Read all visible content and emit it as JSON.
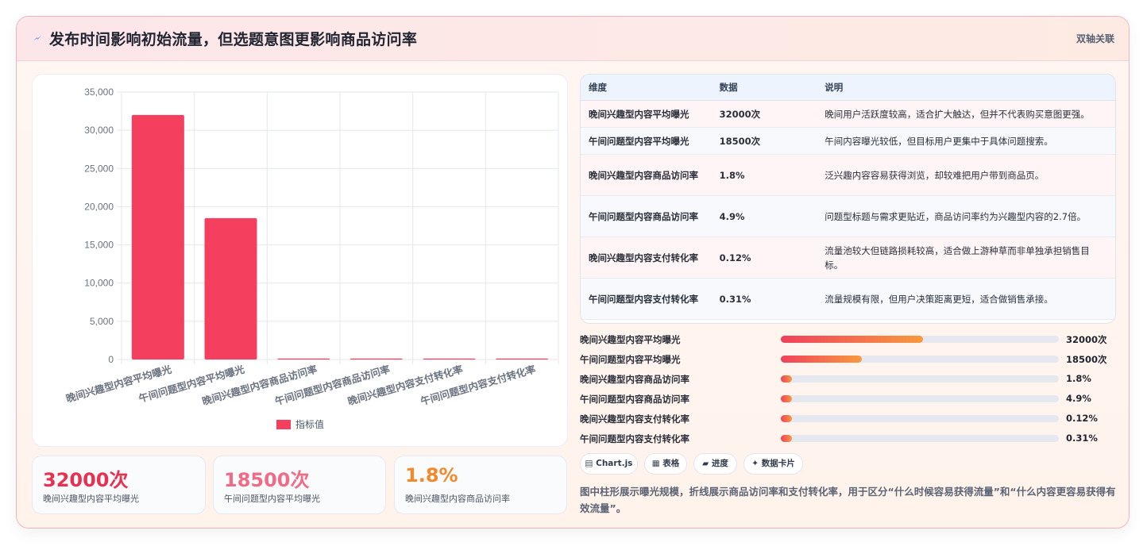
{
  "header": {
    "title": "发布时间影响初始流量，但选题意图更影响商品访问率",
    "link": "双轴关联",
    "icon": "lightning-icon"
  },
  "chart_data": {
    "type": "bar",
    "categories": [
      "晚间兴趣型内容平均曝光",
      "午间问题型内容平均曝光",
      "晚间兴趣型内容商品访问率",
      "午间问题型内容商品访问率",
      "晚间兴趣型内容支付转化率",
      "午间问题型内容支付转化率"
    ],
    "series": [
      {
        "name": "指标值",
        "values": [
          32000,
          18500,
          1.8,
          4.9,
          0.12,
          0.31
        ],
        "color": "#f43f5e"
      }
    ],
    "yticks": [
      "0",
      "5,000",
      "10,000",
      "15,000",
      "20,000",
      "25,000",
      "30,000",
      "35,000"
    ],
    "ylim": [
      0,
      35000
    ],
    "grid": true,
    "legend": "bottom"
  },
  "stats": [
    {
      "value": "32000次",
      "label": "晚间兴趣型内容平均曝光",
      "color": "#e8304f"
    },
    {
      "value": "18500次",
      "label": "午间问题型内容平均曝光",
      "color": "#f06b86"
    },
    {
      "value": "1.8%",
      "label": "晚间兴趣型内容商品访问率",
      "color": "#f28a2c"
    }
  ],
  "table": {
    "headers": [
      "维度",
      "数据",
      "说明"
    ],
    "rows": [
      [
        "晚间兴趣型内容平均曝光",
        "32000次",
        "晚间用户活跃度较高，适合扩大触达，但并不代表购买意图更强。"
      ],
      [
        "午间问题型内容平均曝光",
        "18500次",
        "午间内容曝光较低，但目标用户更集中于具体问题搜索。"
      ],
      [
        "晚间兴趣型内容商品访问率",
        "1.8%",
        "泛兴趣内容容易获得浏览，却较难把用户带到商品页。"
      ],
      [
        "午间问题型内容商品访问率",
        "4.9%",
        "问题型标题与需求更贴近，商品访问率约为兴趣型内容的2.7倍。"
      ],
      [
        "晚间兴趣型内容支付转化率",
        "0.12%",
        "流量池较大但链路损耗较高，适合做上游种草而非单独承担销售目标。"
      ],
      [
        "午间问题型内容支付转化率",
        "0.31%",
        "流量规模有限，但用户决策距离更短，适合做销售承接。"
      ]
    ]
  },
  "progress": [
    {
      "label": "晚间兴趣型内容平均曝光",
      "value": "32000次",
      "fraction": 0.51
    },
    {
      "label": "午间问题型内容平均曝光",
      "value": "18500次",
      "fraction": 0.29
    },
    {
      "label": "晚间兴趣型内容商品访问率",
      "value": "1.8%",
      "fraction": 0.04
    },
    {
      "label": "午间问题型内容商品访问率",
      "value": "4.9%",
      "fraction": 0.04
    },
    {
      "label": "晚间兴趣型内容支付转化率",
      "value": "0.12%",
      "fraction": 0.04
    },
    {
      "label": "午间问题型内容支付转化率",
      "value": "0.31%",
      "fraction": 0.04
    }
  ],
  "chips": [
    "▤ Chart.js",
    "▦ 表格",
    "▰ 进度",
    "✦ 数据卡片"
  ],
  "note": "图中柱形展示曝光规模，折线展示商品访问率和支付转化率，用于区分“什么时候容易获得流量”和“什么内容更容易获得有效流量”。"
}
